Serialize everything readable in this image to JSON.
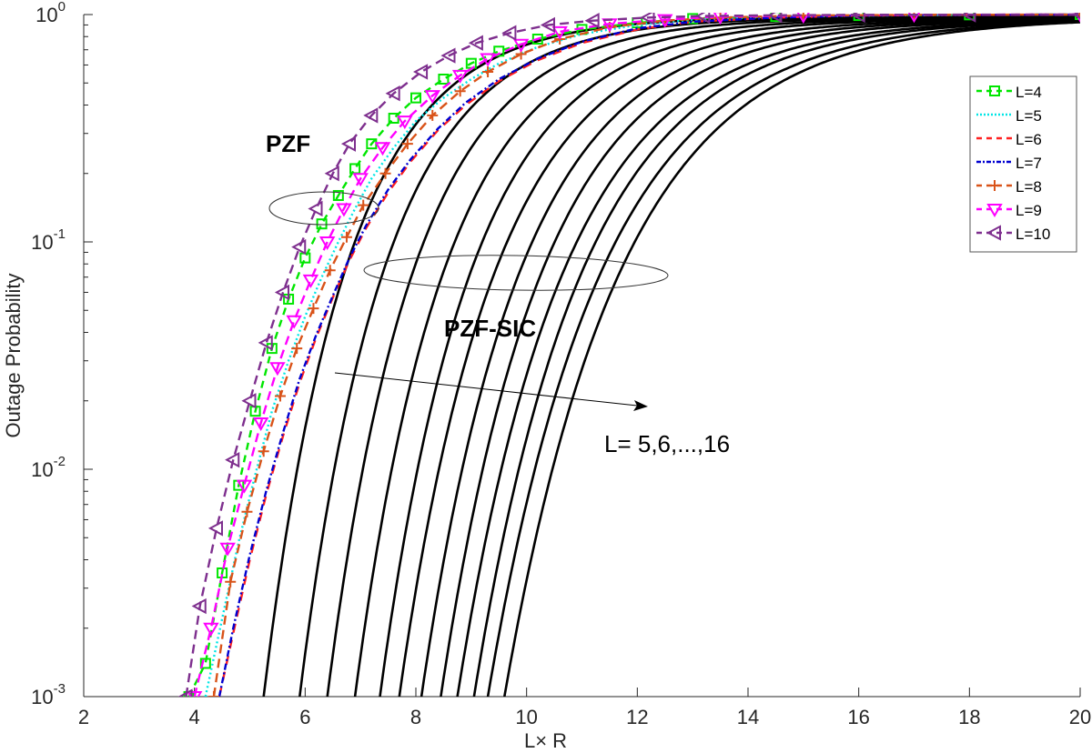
{
  "chart_data": {
    "type": "line",
    "title": "",
    "xlabel": "L× R",
    "ylabel": "Outage Probability",
    "xlim": [
      2,
      20
    ],
    "ylim": [
      0.001,
      1
    ],
    "yscale": "log",
    "grid": false,
    "legend_position": "upper right",
    "x_ticks": [
      "2",
      "4",
      "6",
      "8",
      "10",
      "12",
      "14",
      "16",
      "18",
      "20"
    ],
    "y_ticks": [
      {
        "base": "10",
        "exp": "0"
      },
      {
        "base": "10",
        "exp": "-1"
      },
      {
        "base": "10",
        "exp": "-2"
      },
      {
        "base": "10",
        "exp": "-3"
      }
    ],
    "annotations": [
      {
        "text": "PZF",
        "bold": true
      },
      {
        "text": "PZF-SIC",
        "bold": true
      },
      {
        "text": "L= 5,6,...,16",
        "bold": false
      }
    ],
    "series": [
      {
        "name": "L=4",
        "color": "#00e600",
        "dash": "8,6",
        "marker": "square",
        "x": [
          3.9,
          4.2,
          4.5,
          4.8,
          5.1,
          5.4,
          5.7,
          6.0,
          6.3,
          6.6,
          6.9,
          7.2,
          7.6,
          8.0,
          8.5,
          9.0,
          9.5,
          10.2,
          11.0,
          12.0,
          13.0,
          14.5,
          16.0,
          18.0,
          20.0
        ],
        "y": [
          0.001,
          0.0014,
          0.0035,
          0.0085,
          0.018,
          0.034,
          0.056,
          0.085,
          0.12,
          0.16,
          0.21,
          0.27,
          0.35,
          0.43,
          0.52,
          0.61,
          0.69,
          0.78,
          0.86,
          0.92,
          0.96,
          0.98,
          0.99,
          0.997,
          1.0
        ]
      },
      {
        "name": "L=5",
        "color": "#00e6e6",
        "dash": "2,3",
        "marker": "none",
        "x": [
          4.2,
          4.5,
          4.8,
          5.1,
          5.4,
          5.7,
          6.0,
          6.3,
          6.6,
          6.9,
          7.2,
          7.6,
          8.0,
          8.5,
          9.0,
          9.5,
          10.2,
          11.0,
          12.0,
          13.0,
          14.5,
          16.0,
          18.0,
          20.0
        ],
        "y": [
          0.001,
          0.0022,
          0.0048,
          0.0095,
          0.018,
          0.03,
          0.047,
          0.07,
          0.1,
          0.14,
          0.19,
          0.26,
          0.34,
          0.43,
          0.52,
          0.61,
          0.72,
          0.82,
          0.9,
          0.95,
          0.98,
          0.99,
          0.997,
          1.0
        ]
      },
      {
        "name": "L=6",
        "color": "#ff2020",
        "dash": "10,8",
        "marker": "none",
        "x": [
          4.45,
          4.7,
          5.0,
          5.3,
          5.6,
          5.9,
          6.2,
          6.5,
          6.8,
          7.1,
          7.5,
          7.9,
          8.4,
          8.9,
          9.5,
          10.2,
          11.0,
          12.0,
          13.0,
          14.5,
          16.0,
          18.0,
          20.0
        ],
        "y": [
          0.001,
          0.0019,
          0.004,
          0.0078,
          0.014,
          0.024,
          0.038,
          0.057,
          0.083,
          0.115,
          0.165,
          0.225,
          0.31,
          0.4,
          0.51,
          0.63,
          0.75,
          0.86,
          0.93,
          0.97,
          0.99,
          0.997,
          1.0
        ]
      },
      {
        "name": "L=7",
        "color": "#0000d0",
        "dash": "7,3,2,3",
        "marker": "none",
        "x": [
          4.45,
          4.7,
          5.0,
          5.3,
          5.6,
          5.9,
          6.2,
          6.5,
          6.8,
          7.1,
          7.5,
          7.9,
          8.4,
          8.9,
          9.5,
          10.2,
          11.0,
          12.0,
          13.0,
          14.5,
          16.0,
          18.0,
          20.0
        ],
        "y": [
          0.001,
          0.002,
          0.0042,
          0.0081,
          0.0145,
          0.025,
          0.039,
          0.058,
          0.085,
          0.118,
          0.17,
          0.23,
          0.315,
          0.41,
          0.52,
          0.64,
          0.76,
          0.87,
          0.93,
          0.97,
          0.99,
          0.997,
          1.0
        ]
      },
      {
        "name": "L=8",
        "color": "#d95319",
        "dash": "10,6",
        "marker": "plus",
        "x": [
          4.35,
          4.65,
          4.95,
          5.25,
          5.55,
          5.85,
          6.15,
          6.45,
          6.75,
          7.05,
          7.45,
          7.85,
          8.3,
          8.8,
          9.3,
          9.9,
          10.6,
          11.5,
          12.5,
          13.5,
          15.0,
          17.0,
          20.0
        ],
        "y": [
          0.001,
          0.0032,
          0.0065,
          0.012,
          0.021,
          0.034,
          0.051,
          0.075,
          0.105,
          0.145,
          0.2,
          0.27,
          0.36,
          0.46,
          0.56,
          0.67,
          0.78,
          0.88,
          0.94,
          0.97,
          0.99,
          0.997,
          1.0
        ]
      },
      {
        "name": "L=9",
        "color": "#ff00ff",
        "dash": "10,6",
        "marker": "triangle-down",
        "x": [
          4.0,
          4.3,
          4.6,
          4.9,
          5.2,
          5.5,
          5.8,
          6.1,
          6.4,
          6.7,
          7.0,
          7.4,
          7.8,
          8.3,
          8.8,
          9.3,
          9.9,
          10.6,
          11.5,
          12.5,
          13.5,
          15.0,
          17.0,
          20.0
        ],
        "y": [
          0.001,
          0.002,
          0.0045,
          0.0085,
          0.016,
          0.028,
          0.045,
          0.068,
          0.1,
          0.14,
          0.19,
          0.26,
          0.34,
          0.44,
          0.54,
          0.64,
          0.74,
          0.84,
          0.91,
          0.95,
          0.98,
          0.99,
          0.997,
          1.0
        ]
      },
      {
        "name": "L=10",
        "color": "#7e2f8e",
        "dash": "10,6",
        "marker": "triangle-left",
        "x": [
          3.85,
          4.1,
          4.4,
          4.7,
          5.0,
          5.3,
          5.6,
          5.9,
          6.2,
          6.5,
          6.8,
          7.2,
          7.6,
          8.1,
          8.6,
          9.1,
          9.7,
          10.4,
          11.2,
          12.2,
          13.2,
          14.5,
          16.0,
          18.0,
          20.0
        ],
        "y": [
          0.001,
          0.0025,
          0.0055,
          0.011,
          0.02,
          0.036,
          0.06,
          0.095,
          0.14,
          0.2,
          0.27,
          0.36,
          0.45,
          0.56,
          0.66,
          0.75,
          0.83,
          0.9,
          0.94,
          0.97,
          0.985,
          0.993,
          0.997,
          0.999,
          1.0
        ]
      }
    ],
    "sic_series": {
      "name_pattern": "PZF-SIC L",
      "color": "#000000",
      "labels": [
        "L=5",
        "L=6",
        "L=7",
        "L=8",
        "L=9",
        "L=10",
        "L=11",
        "L=12",
        "L=13",
        "L=14",
        "L=15",
        "L=16"
      ],
      "x_at_1e-3": [
        5.25,
        5.9,
        6.4,
        6.9,
        7.35,
        7.7,
        8.1,
        8.45,
        8.75,
        9.05,
        9.3,
        9.6
      ],
      "x_at_1e-1": [
        6.9,
        7.6,
        8.15,
        8.7,
        9.2,
        9.65,
        10.1,
        10.5,
        10.9,
        11.25,
        11.6,
        11.95
      ],
      "y_at_x20": [
        0.98,
        0.975,
        0.97,
        0.965,
        0.96,
        0.955,
        0.95,
        0.945,
        0.94,
        0.935,
        0.93,
        0.925
      ]
    }
  },
  "legend": {
    "items": [
      {
        "label": "L=4"
      },
      {
        "label": "L=5"
      },
      {
        "label": "L=6"
      },
      {
        "label": "L=7"
      },
      {
        "label": "L=8"
      },
      {
        "label": "L=9"
      },
      {
        "label": "L=10"
      }
    ]
  }
}
